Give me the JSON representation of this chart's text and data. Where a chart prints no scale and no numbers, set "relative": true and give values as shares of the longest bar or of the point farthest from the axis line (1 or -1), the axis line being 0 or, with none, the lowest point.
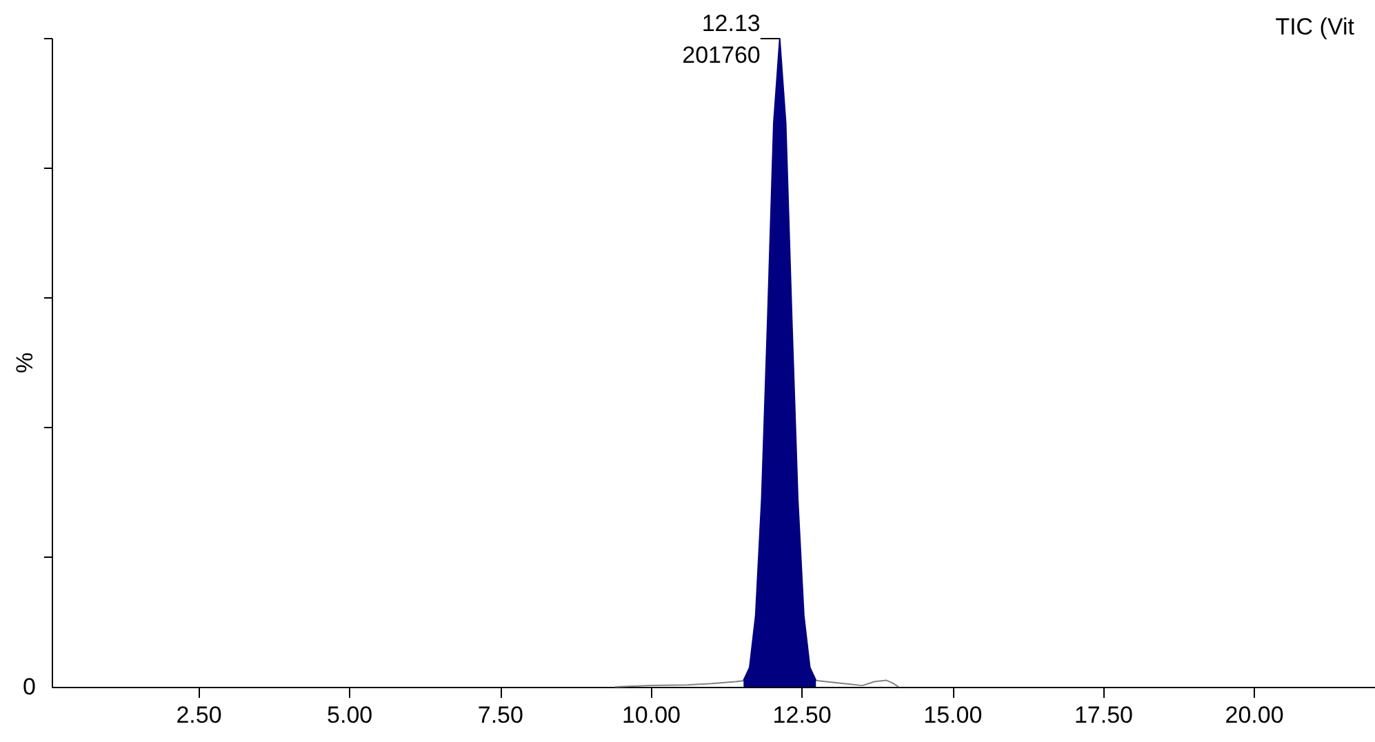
{
  "chart_data": {
    "type": "area",
    "subtitle": "TIC (Vit",
    "ylabel": "%",
    "relative": true,
    "xlim": [
      0.07,
      22.0
    ],
    "xticks": [
      {
        "value": 2.5,
        "label": "2.50"
      },
      {
        "value": 5,
        "label": "5.00"
      },
      {
        "value": 7.5,
        "label": "7.50"
      },
      {
        "value": 10,
        "label": "10.00"
      },
      {
        "value": 12.5,
        "label": "12.50"
      },
      {
        "value": 15,
        "label": "15.00"
      },
      {
        "value": 17.5,
        "label": "17.50"
      },
      {
        "value": 20,
        "label": "20.00"
      }
    ],
    "series": [
      {
        "type": "line",
        "color": "#808080",
        "x": [
          9.4,
          10.0,
          10.6,
          11.0,
          11.4,
          11.6,
          12.7,
          12.9,
          13.3,
          13.5,
          13.7,
          13.9,
          14.0,
          14.1
        ],
        "values": [
          0,
          0.002,
          0.003,
          0.005,
          0.008,
          0.01,
          0.01,
          0.008,
          0.004,
          0.002,
          0.008,
          0.01,
          0.006,
          0
        ]
      },
      {
        "color": "#000080",
        "x": [
          11.53,
          11.63,
          11.73,
          11.83,
          11.93,
          12.03,
          12.13,
          12.23,
          12.33,
          12.43,
          12.53,
          12.63,
          12.73
        ],
        "values": [
          0.01,
          0.03,
          0.11,
          0.29,
          0.57,
          0.87,
          1,
          0.87,
          0.57,
          0.29,
          0.11,
          0.03,
          0.01
        ]
      }
    ],
    "annotations": [
      {
        "text": "12.13",
        "x": 12.13,
        "y": 1
      },
      {
        "text": "201760",
        "x": 12.13,
        "y": 1
      },
      "0"
    ]
  }
}
